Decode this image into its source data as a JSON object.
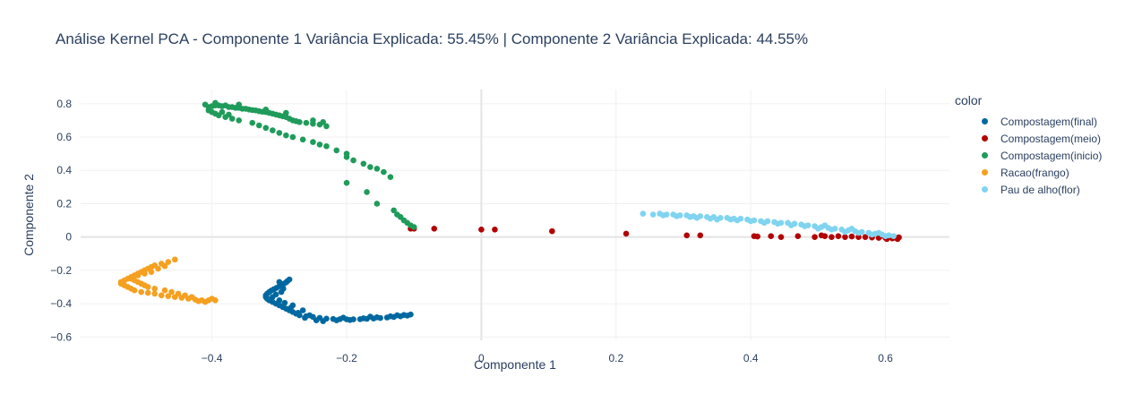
{
  "chart_data": {
    "type": "scatter",
    "title": "Análise Kernel PCA - Componente 1 Variância Explicada: 55.45% | Componente 2 Variância Explicada: 44.55%",
    "xlabel": "Componente 1",
    "ylabel": "Componente 2",
    "xlim": [
      -0.595,
      0.695
    ],
    "ylim": [
      -0.62,
      0.885
    ],
    "x_ticks": [
      -0.4,
      -0.2,
      0,
      0.2,
      0.4,
      0.6
    ],
    "x_tick_labels": [
      "−0.4",
      "−0.2",
      "0",
      "0.2",
      "0.4",
      "0.6"
    ],
    "y_ticks": [
      -0.6,
      -0.4,
      -0.2,
      0,
      0.2,
      0.4,
      0.6,
      0.8
    ],
    "y_tick_labels": [
      "−0.6",
      "−0.4",
      "−0.2",
      "0",
      "0.2",
      "0.4",
      "0.6",
      "0.8"
    ],
    "grid": true,
    "legend_title": "color",
    "legend_position": "right",
    "series": [
      {
        "name": "Compostagem(final)",
        "color": "#0068a0",
        "points": [
          [
            -0.285,
            -0.255
          ],
          [
            -0.288,
            -0.265
          ],
          [
            -0.29,
            -0.272
          ],
          [
            -0.293,
            -0.28
          ],
          [
            -0.296,
            -0.288
          ],
          [
            -0.3,
            -0.296
          ],
          [
            -0.304,
            -0.305
          ],
          [
            -0.308,
            -0.313
          ],
          [
            -0.312,
            -0.322
          ],
          [
            -0.315,
            -0.33
          ],
          [
            -0.318,
            -0.34
          ],
          [
            -0.32,
            -0.35
          ],
          [
            -0.32,
            -0.36
          ],
          [
            -0.318,
            -0.37
          ],
          [
            -0.315,
            -0.38
          ],
          [
            -0.31,
            -0.39
          ],
          [
            -0.305,
            -0.4
          ],
          [
            -0.3,
            -0.41
          ],
          [
            -0.295,
            -0.42
          ],
          [
            -0.29,
            -0.43
          ],
          [
            -0.285,
            -0.44
          ],
          [
            -0.28,
            -0.45
          ],
          [
            -0.275,
            -0.46
          ],
          [
            -0.27,
            -0.47
          ],
          [
            -0.26,
            -0.475
          ],
          [
            -0.25,
            -0.48
          ],
          [
            -0.24,
            -0.485
          ],
          [
            -0.23,
            -0.49
          ],
          [
            -0.22,
            -0.492
          ],
          [
            -0.21,
            -0.493
          ],
          [
            -0.2,
            -0.494
          ],
          [
            -0.19,
            -0.494
          ],
          [
            -0.18,
            -0.493
          ],
          [
            -0.17,
            -0.491
          ],
          [
            -0.16,
            -0.489
          ],
          [
            -0.15,
            -0.486
          ],
          [
            -0.14,
            -0.483
          ],
          [
            -0.13,
            -0.48
          ],
          [
            -0.12,
            -0.476
          ],
          [
            -0.11,
            -0.472
          ],
          [
            -0.105,
            -0.465
          ],
          [
            -0.297,
            -0.33
          ],
          [
            -0.305,
            -0.345
          ],
          [
            -0.31,
            -0.36
          ],
          [
            -0.3,
            -0.38
          ],
          [
            -0.292,
            -0.395
          ],
          [
            -0.28,
            -0.41
          ],
          [
            -0.265,
            -0.44
          ],
          [
            -0.255,
            -0.47
          ],
          [
            -0.245,
            -0.5
          ],
          [
            -0.235,
            -0.505
          ],
          [
            -0.215,
            -0.5
          ],
          [
            -0.195,
            -0.498
          ],
          [
            -0.175,
            -0.488
          ],
          [
            -0.155,
            -0.482
          ],
          [
            -0.135,
            -0.476
          ],
          [
            -0.115,
            -0.468
          ],
          [
            -0.3,
            -0.27
          ],
          [
            -0.294,
            -0.31
          ],
          [
            -0.283,
            -0.425
          ],
          [
            -0.272,
            -0.455
          ],
          [
            -0.262,
            -0.485
          ],
          [
            -0.205,
            -0.484
          ],
          [
            -0.165,
            -0.478
          ],
          [
            -0.125,
            -0.47
          ]
        ]
      },
      {
        "name": "Compostagem(meio)",
        "color": "#b30000",
        "points": [
          [
            -0.1,
            0.05
          ],
          [
            -0.105,
            0.05
          ],
          [
            -0.07,
            0.05
          ],
          [
            0,
            0.045
          ],
          [
            0.02,
            0.045
          ],
          [
            0.105,
            0.035
          ],
          [
            0.215,
            0.02
          ],
          [
            0.305,
            0.01
          ],
          [
            0.325,
            0.01
          ],
          [
            0.405,
            0.005
          ],
          [
            0.41,
            0.003
          ],
          [
            0.43,
            0.005
          ],
          [
            0.445,
            0.0
          ],
          [
            0.47,
            0.005
          ],
          [
            0.495,
            0.0
          ],
          [
            0.505,
            0.01
          ],
          [
            0.51,
            0.005
          ],
          [
            0.52,
            0.0
          ],
          [
            0.53,
            0.005
          ],
          [
            0.54,
            0.0
          ],
          [
            0.55,
            0.003
          ],
          [
            0.56,
            0.0
          ],
          [
            0.57,
            0.0
          ],
          [
            0.58,
            -0.003
          ],
          [
            0.59,
            -0.005
          ],
          [
            0.6,
            -0.005
          ],
          [
            0.605,
            0.0
          ],
          [
            0.61,
            -0.008
          ],
          [
            0.615,
            -0.005
          ],
          [
            0.62,
            -0.002
          ],
          [
            0.618,
            -0.012
          ],
          [
            0.612,
            0.004
          ],
          [
            0.602,
            -0.012
          ],
          [
            0.592,
            0.004
          ]
        ]
      },
      {
        "name": "Compostagem(inicio)",
        "color": "#1f9b5a",
        "points": [
          [
            -0.405,
            0.78
          ],
          [
            -0.4,
            0.785
          ],
          [
            -0.395,
            0.79
          ],
          [
            -0.39,
            0.79
          ],
          [
            -0.385,
            0.785
          ],
          [
            -0.38,
            0.79
          ],
          [
            -0.375,
            0.78
          ],
          [
            -0.37,
            0.78
          ],
          [
            -0.365,
            0.775
          ],
          [
            -0.36,
            0.775
          ],
          [
            -0.355,
            0.77
          ],
          [
            -0.35,
            0.77
          ],
          [
            -0.345,
            0.765
          ],
          [
            -0.34,
            0.762
          ],
          [
            -0.335,
            0.76
          ],
          [
            -0.33,
            0.755
          ],
          [
            -0.325,
            0.752
          ],
          [
            -0.32,
            0.75
          ],
          [
            -0.315,
            0.745
          ],
          [
            -0.31,
            0.74
          ],
          [
            -0.305,
            0.735
          ],
          [
            -0.3,
            0.73
          ],
          [
            -0.295,
            0.725
          ],
          [
            -0.29,
            0.72
          ],
          [
            -0.285,
            0.71
          ],
          [
            -0.28,
            0.7
          ],
          [
            -0.275,
            0.695
          ],
          [
            -0.27,
            0.69
          ],
          [
            -0.26,
            0.685
          ],
          [
            -0.25,
            0.68
          ],
          [
            -0.24,
            0.675
          ],
          [
            -0.23,
            0.665
          ],
          [
            -0.405,
            0.76
          ],
          [
            -0.4,
            0.75
          ],
          [
            -0.395,
            0.74
          ],
          [
            -0.39,
            0.73
          ],
          [
            -0.38,
            0.72
          ],
          [
            -0.37,
            0.71
          ],
          [
            -0.36,
            0.7
          ],
          [
            -0.34,
            0.685
          ],
          [
            -0.33,
            0.67
          ],
          [
            -0.32,
            0.655
          ],
          [
            -0.31,
            0.64
          ],
          [
            -0.3,
            0.625
          ],
          [
            -0.29,
            0.61
          ],
          [
            -0.28,
            0.6
          ],
          [
            -0.265,
            0.585
          ],
          [
            -0.25,
            0.57
          ],
          [
            -0.24,
            0.555
          ],
          [
            -0.23,
            0.545
          ],
          [
            -0.215,
            0.52
          ],
          [
            -0.2,
            0.5
          ],
          [
            -0.2,
            0.48
          ],
          [
            -0.19,
            0.46
          ],
          [
            -0.175,
            0.44
          ],
          [
            -0.165,
            0.42
          ],
          [
            -0.155,
            0.41
          ],
          [
            -0.145,
            0.39
          ],
          [
            -0.135,
            0.36
          ],
          [
            -0.2,
            0.325
          ],
          [
            -0.17,
            0.27
          ],
          [
            -0.155,
            0.2
          ],
          [
            -0.13,
            0.16
          ],
          [
            -0.125,
            0.135
          ],
          [
            -0.12,
            0.12
          ],
          [
            -0.115,
            0.1
          ],
          [
            -0.11,
            0.085
          ],
          [
            -0.105,
            0.07
          ],
          [
            -0.1,
            0.06
          ],
          [
            -0.41,
            0.795
          ],
          [
            -0.395,
            0.805
          ],
          [
            -0.36,
            0.795
          ],
          [
            -0.32,
            0.765
          ],
          [
            -0.29,
            0.745
          ],
          [
            -0.25,
            0.7
          ],
          [
            -0.235,
            0.69
          ],
          [
            -0.385,
            0.75
          ],
          [
            -0.375,
            0.735
          ]
        ]
      },
      {
        "name": "Racao(frango)",
        "color": "#f5a020",
        "points": [
          [
            -0.535,
            -0.27
          ],
          [
            -0.53,
            -0.26
          ],
          [
            -0.525,
            -0.25
          ],
          [
            -0.52,
            -0.24
          ],
          [
            -0.515,
            -0.23
          ],
          [
            -0.51,
            -0.22
          ],
          [
            -0.505,
            -0.21
          ],
          [
            -0.5,
            -0.2
          ],
          [
            -0.495,
            -0.19
          ],
          [
            -0.49,
            -0.18
          ],
          [
            -0.485,
            -0.17
          ],
          [
            -0.475,
            -0.16
          ],
          [
            -0.465,
            -0.15
          ],
          [
            -0.455,
            -0.135
          ],
          [
            -0.535,
            -0.28
          ],
          [
            -0.53,
            -0.29
          ],
          [
            -0.525,
            -0.3
          ],
          [
            -0.52,
            -0.31
          ],
          [
            -0.515,
            -0.32
          ],
          [
            -0.505,
            -0.33
          ],
          [
            -0.495,
            -0.335
          ],
          [
            -0.485,
            -0.34
          ],
          [
            -0.475,
            -0.35
          ],
          [
            -0.465,
            -0.355
          ],
          [
            -0.455,
            -0.36
          ],
          [
            -0.445,
            -0.365
          ],
          [
            -0.435,
            -0.37
          ],
          [
            -0.425,
            -0.375
          ],
          [
            -0.415,
            -0.38
          ],
          [
            -0.405,
            -0.38
          ],
          [
            -0.395,
            -0.38
          ],
          [
            -0.52,
            -0.25
          ],
          [
            -0.515,
            -0.26
          ],
          [
            -0.51,
            -0.27
          ],
          [
            -0.505,
            -0.28
          ],
          [
            -0.5,
            -0.29
          ],
          [
            -0.495,
            -0.3
          ],
          [
            -0.485,
            -0.31
          ],
          [
            -0.47,
            -0.32
          ],
          [
            -0.46,
            -0.33
          ],
          [
            -0.45,
            -0.34
          ],
          [
            -0.44,
            -0.35
          ],
          [
            -0.43,
            -0.36
          ],
          [
            -0.42,
            -0.385
          ],
          [
            -0.41,
            -0.39
          ],
          [
            -0.4,
            -0.37
          ],
          [
            -0.51,
            -0.23
          ],
          [
            -0.5,
            -0.22
          ],
          [
            -0.49,
            -0.21
          ],
          [
            -0.48,
            -0.19
          ],
          [
            -0.47,
            -0.175
          ]
        ]
      },
      {
        "name": "Pau de alho(flor)",
        "color": "#80d4f0",
        "points": [
          [
            0.24,
            0.14
          ],
          [
            0.255,
            0.135
          ],
          [
            0.265,
            0.14
          ],
          [
            0.275,
            0.135
          ],
          [
            0.285,
            0.135
          ],
          [
            0.295,
            0.13
          ],
          [
            0.305,
            0.13
          ],
          [
            0.315,
            0.125
          ],
          [
            0.325,
            0.125
          ],
          [
            0.335,
            0.12
          ],
          [
            0.345,
            0.12
          ],
          [
            0.355,
            0.115
          ],
          [
            0.365,
            0.115
          ],
          [
            0.375,
            0.11
          ],
          [
            0.385,
            0.11
          ],
          [
            0.395,
            0.105
          ],
          [
            0.405,
            0.1
          ],
          [
            0.415,
            0.095
          ],
          [
            0.425,
            0.095
          ],
          [
            0.435,
            0.09
          ],
          [
            0.445,
            0.085
          ],
          [
            0.455,
            0.085
          ],
          [
            0.465,
            0.08
          ],
          [
            0.475,
            0.075
          ],
          [
            0.485,
            0.07
          ],
          [
            0.495,
            0.065
          ],
          [
            0.505,
            0.06
          ],
          [
            0.515,
            0.055
          ],
          [
            0.525,
            0.05
          ],
          [
            0.535,
            0.045
          ],
          [
            0.545,
            0.04
          ],
          [
            0.555,
            0.035
          ],
          [
            0.565,
            0.03
          ],
          [
            0.575,
            0.025
          ],
          [
            0.585,
            0.02
          ],
          [
            0.595,
            0.015
          ],
          [
            0.605,
            0.01
          ],
          [
            0.612,
            0.005
          ],
          [
            0.31,
            0.12
          ],
          [
            0.34,
            0.11
          ],
          [
            0.37,
            0.105
          ],
          [
            0.4,
            0.095
          ],
          [
            0.44,
            0.08
          ],
          [
            0.48,
            0.065
          ],
          [
            0.52,
            0.045
          ],
          [
            0.56,
            0.025
          ],
          [
            0.6,
            0.005
          ],
          [
            0.58,
            0.015
          ],
          [
            0.54,
            0.03
          ],
          [
            0.5,
            0.05
          ],
          [
            0.46,
            0.07
          ],
          [
            0.42,
            0.085
          ],
          [
            0.38,
            0.1
          ],
          [
            0.35,
            0.105
          ],
          [
            0.32,
            0.115
          ],
          [
            0.29,
            0.125
          ],
          [
            0.27,
            0.13
          ],
          [
            0.51,
            0.07
          ],
          [
            0.55,
            0.05
          ],
          [
            0.59,
            0.025
          ]
        ]
      }
    ]
  }
}
